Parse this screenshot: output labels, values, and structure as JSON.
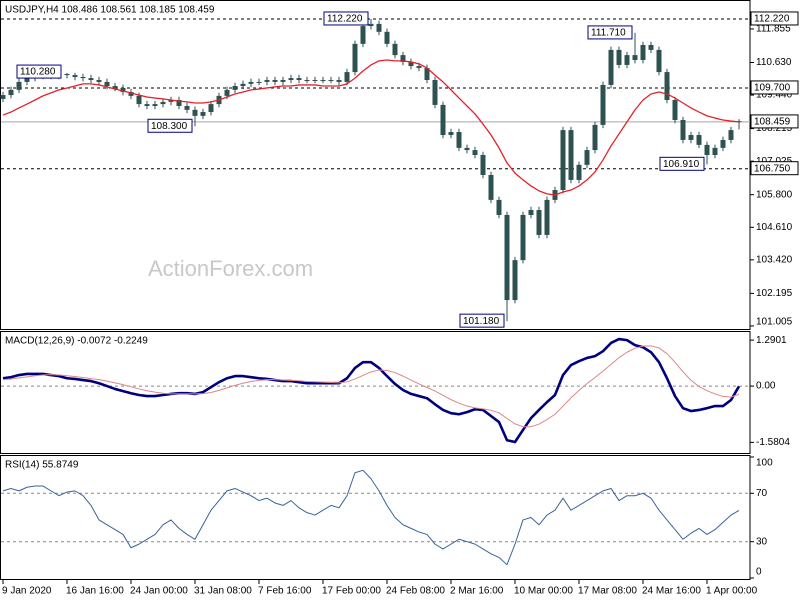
{
  "chart_data": [
    {
      "type": "candlestick",
      "title": "USDJPY,H4 108.486 108.561 108.185 108.459",
      "watermark": "ActionForex.com",
      "color": "#2e5252",
      "categories": [
        "9 Jan 2020",
        null,
        null,
        null,
        null,
        null,
        null,
        null,
        "16 Jan 16:00",
        null,
        null,
        null,
        null,
        null,
        null,
        null,
        "24 Jan 00:00",
        null,
        null,
        null,
        null,
        null,
        null,
        null,
        "31 Jan 08:00",
        null,
        null,
        null,
        null,
        null,
        null,
        null,
        "7 Feb 16:00",
        null,
        null,
        null,
        null,
        null,
        null,
        null,
        "17 Feb 00:00",
        null,
        null,
        null,
        null,
        null,
        null,
        null,
        "24 Feb 08:00",
        null,
        null,
        null,
        null,
        null,
        null,
        null,
        "2 Mar 16:00",
        null,
        null,
        null,
        null,
        null,
        null,
        null,
        "10 Mar 00:00",
        null,
        null,
        null,
        null,
        null,
        null,
        null,
        "17 Mar 08:00",
        null,
        null,
        null,
        null,
        null,
        null,
        null,
        "24 Mar 16:00",
        null,
        null,
        null,
        null,
        null,
        null,
        null,
        "1 Apr 00:00",
        null,
        null,
        null,
        null
      ],
      "open": [
        109.3,
        109.44,
        109.63,
        109.92,
        110.06,
        110.14,
        110.21,
        110.14,
        110.21,
        110.17,
        110.1,
        110.06,
        109.99,
        109.92,
        109.77,
        109.7,
        109.55,
        109.41,
        109.11,
        109.04,
        109.11,
        109.19,
        109.26,
        109.04,
        108.9,
        108.68,
        108.82,
        109.11,
        109.41,
        109.63,
        109.77,
        109.85,
        109.92,
        109.92,
        109.99,
        109.92,
        109.99,
        110.06,
        109.99,
        109.99,
        109.99,
        109.99,
        109.99,
        109.92,
        110.28,
        111.31,
        111.96,
        112.04,
        111.75,
        111.31,
        110.9,
        110.65,
        110.5,
        110.43,
        109.99,
        109.08,
        107.98,
        108.09,
        107.51,
        107.43,
        107.25,
        106.52,
        105.61,
        105.06,
        101.95,
        103.41,
        105.06,
        105.24,
        104.33,
        105.61,
        105.97,
        108.16,
        106.34,
        106.89,
        107.43,
        108.35,
        109.81,
        111.09,
        110.54,
        110.9,
        110.72,
        111.27,
        111.09,
        110.28,
        109.26,
        108.53,
        107.8,
        107.98,
        107.62,
        107.25,
        107.51,
        107.8,
        108.486
      ],
      "high": [
        109.56,
        109.75,
        110.04,
        110.18,
        110.26,
        110.28,
        110.27,
        110.26,
        110.25,
        110.25,
        110.22,
        110.18,
        110.11,
        110.04,
        109.89,
        109.82,
        109.67,
        109.53,
        109.23,
        109.23,
        109.31,
        109.38,
        109.38,
        109.16,
        109.02,
        108.94,
        109.23,
        109.53,
        109.75,
        109.89,
        109.97,
        110.04,
        110.04,
        110.11,
        110.11,
        110.11,
        110.18,
        110.18,
        110.11,
        110.11,
        110.11,
        110.11,
        110.11,
        110.4,
        111.43,
        112.08,
        112.22,
        112.16,
        111.87,
        111.43,
        111.02,
        110.77,
        110.62,
        110.55,
        110.11,
        109.2,
        108.21,
        108.21,
        107.63,
        107.55,
        107.37,
        106.64,
        105.73,
        105.18,
        103.53,
        105.18,
        105.36,
        105.36,
        105.73,
        106.09,
        108.28,
        108.28,
        107.01,
        107.55,
        108.47,
        109.93,
        111.21,
        111.21,
        111.02,
        111.71,
        111.39,
        111.39,
        111.21,
        110.4,
        109.38,
        108.65,
        108.1,
        108.1,
        107.74,
        107.63,
        107.92,
        108.28,
        108.561
      ],
      "low": [
        109.18,
        109.32,
        109.51,
        109.8,
        109.94,
        110.02,
        110.02,
        110.02,
        110.05,
        109.98,
        109.94,
        109.87,
        109.8,
        109.65,
        109.58,
        109.43,
        109.29,
        108.99,
        108.92,
        108.92,
        108.99,
        109.07,
        108.92,
        108.78,
        108.3,
        108.56,
        108.7,
        108.99,
        109.29,
        109.51,
        109.65,
        109.73,
        109.8,
        109.8,
        109.8,
        109.8,
        109.87,
        109.87,
        109.87,
        109.87,
        109.87,
        109.87,
        109.8,
        109.8,
        110.16,
        111.19,
        111.84,
        111.63,
        111.19,
        110.78,
        110.53,
        110.38,
        110.31,
        109.87,
        108.96,
        107.86,
        107.86,
        107.39,
        107.31,
        107.13,
        106.4,
        105.49,
        104.94,
        101.18,
        101.83,
        103.29,
        104.94,
        104.21,
        104.21,
        105.49,
        105.85,
        106.22,
        106.22,
        106.77,
        107.31,
        108.23,
        109.69,
        110.42,
        110.42,
        110.6,
        110.6,
        110.97,
        110.16,
        109.14,
        108.41,
        107.68,
        107.68,
        107.5,
        106.91,
        107.13,
        107.39,
        107.68,
        108.185
      ],
      "close": [
        109.44,
        109.63,
        109.92,
        110.06,
        110.14,
        110.21,
        110.14,
        110.21,
        110.17,
        110.1,
        110.06,
        109.99,
        109.92,
        109.77,
        109.7,
        109.55,
        109.41,
        109.11,
        109.04,
        109.11,
        109.19,
        109.26,
        109.04,
        108.9,
        108.68,
        108.82,
        109.11,
        109.41,
        109.63,
        109.77,
        109.85,
        109.92,
        109.92,
        109.99,
        109.92,
        109.99,
        110.06,
        109.99,
        109.99,
        109.99,
        109.99,
        109.99,
        109.92,
        110.28,
        111.31,
        111.96,
        112.04,
        111.75,
        111.31,
        110.9,
        110.65,
        110.5,
        110.43,
        109.99,
        109.08,
        107.98,
        108.09,
        107.51,
        107.43,
        107.25,
        106.52,
        105.61,
        105.06,
        101.95,
        103.41,
        105.06,
        105.24,
        104.33,
        105.61,
        105.97,
        108.16,
        106.34,
        106.89,
        107.43,
        108.35,
        109.81,
        111.09,
        110.54,
        110.9,
        110.72,
        111.27,
        111.09,
        110.28,
        109.26,
        108.53,
        107.8,
        107.98,
        107.62,
        107.25,
        107.51,
        107.8,
        108.16,
        108.459
      ],
      "overlays": [
        {
          "color": "#e3232b",
          "values": [
            108.71,
            108.82,
            108.97,
            109.11,
            109.26,
            109.41,
            109.52,
            109.63,
            109.7,
            109.77,
            109.85,
            109.85,
            109.81,
            109.74,
            109.66,
            109.59,
            109.52,
            109.44,
            109.37,
            109.33,
            109.3,
            109.26,
            109.22,
            109.19,
            109.15,
            109.15,
            109.19,
            109.26,
            109.37,
            109.48,
            109.55,
            109.63,
            109.66,
            109.7,
            109.74,
            109.77,
            109.77,
            109.81,
            109.81,
            109.81,
            109.77,
            109.77,
            109.77,
            109.85,
            110.06,
            110.32,
            110.54,
            110.69,
            110.72,
            110.69,
            110.69,
            110.65,
            110.58,
            110.43,
            110.17,
            109.92,
            109.63,
            109.33,
            109.04,
            108.75,
            108.38,
            107.98,
            107.51,
            106.96,
            106.59,
            106.34,
            106.12,
            105.94,
            105.83,
            105.79,
            105.9,
            105.97,
            106.12,
            106.34,
            106.63,
            107.07,
            107.58,
            108.02,
            108.46,
            108.9,
            109.26,
            109.48,
            109.55,
            109.48,
            109.33,
            109.15,
            108.97,
            108.82,
            108.68,
            108.6,
            108.53,
            108.49,
            108.46
          ]
        }
      ],
      "ylim": [
        100.93,
        112.84
      ],
      "yticks": [
        101.005,
        102.195,
        {
          "value": 103.42,
          "label": "103.420"
        },
        {
          "value": 104.61,
          "label": "104.610"
        },
        {
          "value": 105.8,
          "label": "105.800"
        },
        107.025,
        108.215,
        {
          "value": 109.44,
          "label": "109.440"
        },
        {
          "value": 110.63,
          "label": "110.630"
        },
        111.855
      ],
      "levels": [
        {
          "value": 112.22,
          "label": "112.220"
        },
        {
          "value": 109.7,
          "label": "109.700"
        },
        {
          "value": 106.75,
          "label": "106.750"
        }
      ],
      "last_price": {
        "value": 108.459,
        "label": "108.459"
      },
      "annotations": [
        {
          "value": 110.28,
          "label": "110.280"
        },
        {
          "value": 108.3,
          "label": "108.300"
        },
        {
          "value": 112.22,
          "label": "112.220"
        },
        {
          "value": 111.71,
          "label": "111.710"
        },
        {
          "value": 106.91,
          "label": "106.910"
        },
        {
          "value": 101.18,
          "label": "101.180"
        }
      ]
    },
    {
      "type": "line",
      "title": "MACD(12,26,9) -0.0072 -0.2249",
      "series": [
        {
          "color": "#00007f",
          "values": [
            0.22,
            0.25,
            0.31,
            0.34,
            0.34,
            0.34,
            0.31,
            0.28,
            0.22,
            0.2,
            0.17,
            0.14,
            0.08,
            0.0,
            -0.08,
            -0.14,
            -0.2,
            -0.25,
            -0.28,
            -0.28,
            -0.25,
            -0.22,
            -0.2,
            -0.2,
            -0.22,
            -0.17,
            -0.03,
            0.11,
            0.22,
            0.28,
            0.28,
            0.25,
            0.22,
            0.2,
            0.17,
            0.14,
            0.14,
            0.11,
            0.08,
            0.08,
            0.08,
            0.08,
            0.08,
            0.22,
            0.51,
            0.67,
            0.67,
            0.51,
            0.28,
            0.06,
            -0.11,
            -0.22,
            -0.28,
            -0.34,
            -0.51,
            -0.67,
            -0.76,
            -0.79,
            -0.73,
            -0.65,
            -0.67,
            -0.84,
            -1.01,
            -1.52,
            -1.57,
            -1.23,
            -0.9,
            -0.67,
            -0.45,
            -0.25,
            0.31,
            0.59,
            0.7,
            0.79,
            0.84,
            0.98,
            1.21,
            1.32,
            1.29,
            1.15,
            1.09,
            0.95,
            0.67,
            0.22,
            -0.28,
            -0.62,
            -0.7,
            -0.67,
            -0.62,
            -0.56,
            -0.56,
            -0.39,
            -0.0072
          ]
        },
        {
          "color": "#d98888",
          "values": [
            0.18,
            0.2,
            0.23,
            0.26,
            0.29,
            0.31,
            0.32,
            0.31,
            0.29,
            0.27,
            0.24,
            0.21,
            0.18,
            0.14,
            0.09,
            0.04,
            -0.02,
            -0.08,
            -0.13,
            -0.17,
            -0.2,
            -0.22,
            -0.22,
            -0.22,
            -0.22,
            -0.21,
            -0.18,
            -0.12,
            -0.05,
            0.02,
            0.08,
            0.13,
            0.16,
            0.18,
            0.18,
            0.17,
            0.16,
            0.15,
            0.13,
            0.12,
            0.11,
            0.1,
            0.09,
            0.12,
            0.2,
            0.3,
            0.4,
            0.45,
            0.44,
            0.38,
            0.28,
            0.17,
            0.06,
            -0.04,
            -0.14,
            -0.26,
            -0.38,
            -0.48,
            -0.56,
            -0.61,
            -0.64,
            -0.68,
            -0.75,
            -0.91,
            -1.06,
            -1.14,
            -1.14,
            -1.07,
            -0.94,
            -0.79,
            -0.56,
            -0.33,
            -0.12,
            0.07,
            0.24,
            0.42,
            0.61,
            0.8,
            0.95,
            1.06,
            1.12,
            1.13,
            1.07,
            0.91,
            0.67,
            0.4,
            0.16,
            -0.01,
            -0.13,
            -0.22,
            -0.29,
            -0.31,
            -0.2249
          ]
        }
      ],
      "ylim": [
        -1.85,
        1.49
      ],
      "yticks": [
        1.2901,
        {
          "value": 0,
          "label": "0.00"
        },
        -1.5804
      ],
      "levels": [
        0
      ]
    },
    {
      "type": "line",
      "title": "RSI(14) 55.8749",
      "series": [
        {
          "color": "#3a6496",
          "values": [
            72,
            74,
            72,
            75,
            76,
            76,
            72,
            68,
            71,
            72,
            68,
            60,
            48,
            44,
            40,
            36,
            25,
            28,
            32,
            36,
            44,
            48,
            41,
            36,
            32,
            44,
            56,
            64,
            72,
            74,
            71,
            68,
            64,
            66,
            62,
            60,
            64,
            58,
            54,
            52,
            56,
            60,
            58,
            68,
            87,
            89,
            82,
            72,
            60,
            50,
            44,
            41,
            38,
            36,
            28,
            24,
            28,
            32,
            30,
            28,
            24,
            20,
            17,
            11,
            28,
            48,
            50,
            44,
            52,
            56,
            66,
            56,
            60,
            64,
            68,
            72,
            74,
            64,
            68,
            68,
            70,
            66,
            56,
            48,
            40,
            32,
            37,
            41,
            36,
            40,
            46,
            52,
            55.8749
          ]
        }
      ],
      "ylim": [
        0,
        100
      ],
      "yticks": [
        100,
        70,
        30,
        0
      ],
      "levels": [
        70,
        30
      ]
    }
  ]
}
